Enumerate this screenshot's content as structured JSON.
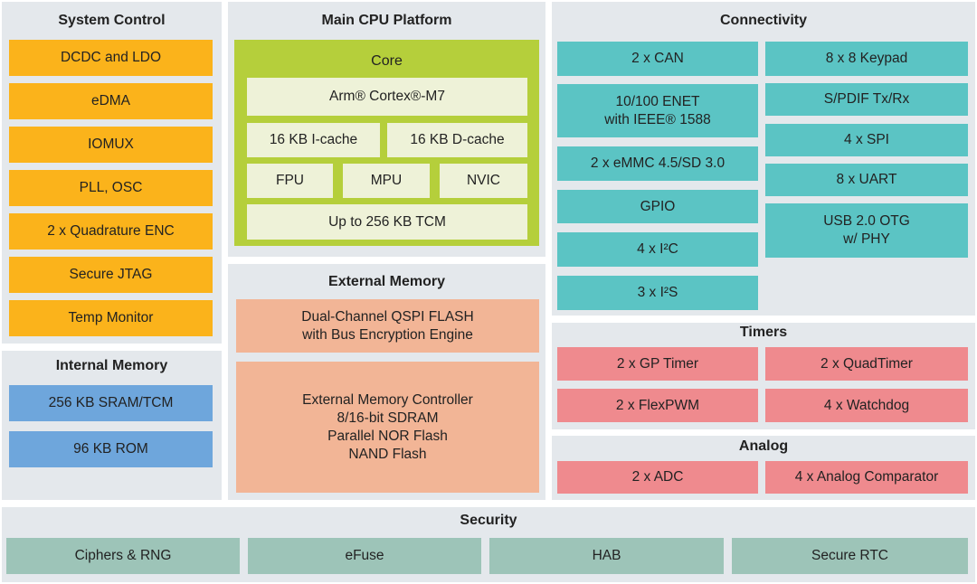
{
  "sections": [
    {
      "title": "System Control",
      "blocks": [
        "DCDC and LDO",
        "eDMA",
        "IOMUX",
        "PLL, OSC",
        "2 x Quadrature ENC",
        "Secure JTAG",
        "Temp Monitor"
      ]
    },
    {
      "title": "Internal Memory",
      "blocks": [
        "256 KB SRAM/TCM",
        "96 KB ROM"
      ]
    },
    {
      "title": "Main CPU Platform",
      "core_label": "Core",
      "blocks": [
        "Arm® Cortex®-M7",
        "16 KB I-cache",
        "16 KB D-cache",
        "FPU",
        "MPU",
        "NVIC",
        "Up to 256 KB TCM"
      ]
    },
    {
      "title": "External Memory",
      "blocks": [
        "Dual-Channel QSPI FLASH\nwith Bus Encryption Engine",
        "External Memory Controller\n8/16-bit SDRAM\nParallel NOR Flash\nNAND Flash"
      ]
    },
    {
      "title": "Connectivity",
      "blocks": [
        "2 x CAN",
        "10/100 ENET\nwith IEEE® 1588",
        "2 x eMMC 4.5/SD 3.0",
        "GPIO",
        "4 x I²C",
        "3 x I²S",
        "8 x 8 Keypad",
        "S/PDIF Tx/Rx",
        "4 x SPI",
        "8 x UART",
        "USB 2.0 OTG\nw/ PHY"
      ]
    },
    {
      "title": "Timers",
      "blocks": [
        "2 x GP Timer",
        "2 x QuadTimer",
        "2 x FlexPWM",
        "4 x Watchdog"
      ]
    },
    {
      "title": "Analog",
      "blocks": [
        "2 x ADC",
        "4 x Analog Comparator"
      ]
    },
    {
      "title": "Security",
      "blocks": [
        "Ciphers & RNG",
        "eFuse",
        "HAB",
        "Secure RTC"
      ]
    }
  ]
}
